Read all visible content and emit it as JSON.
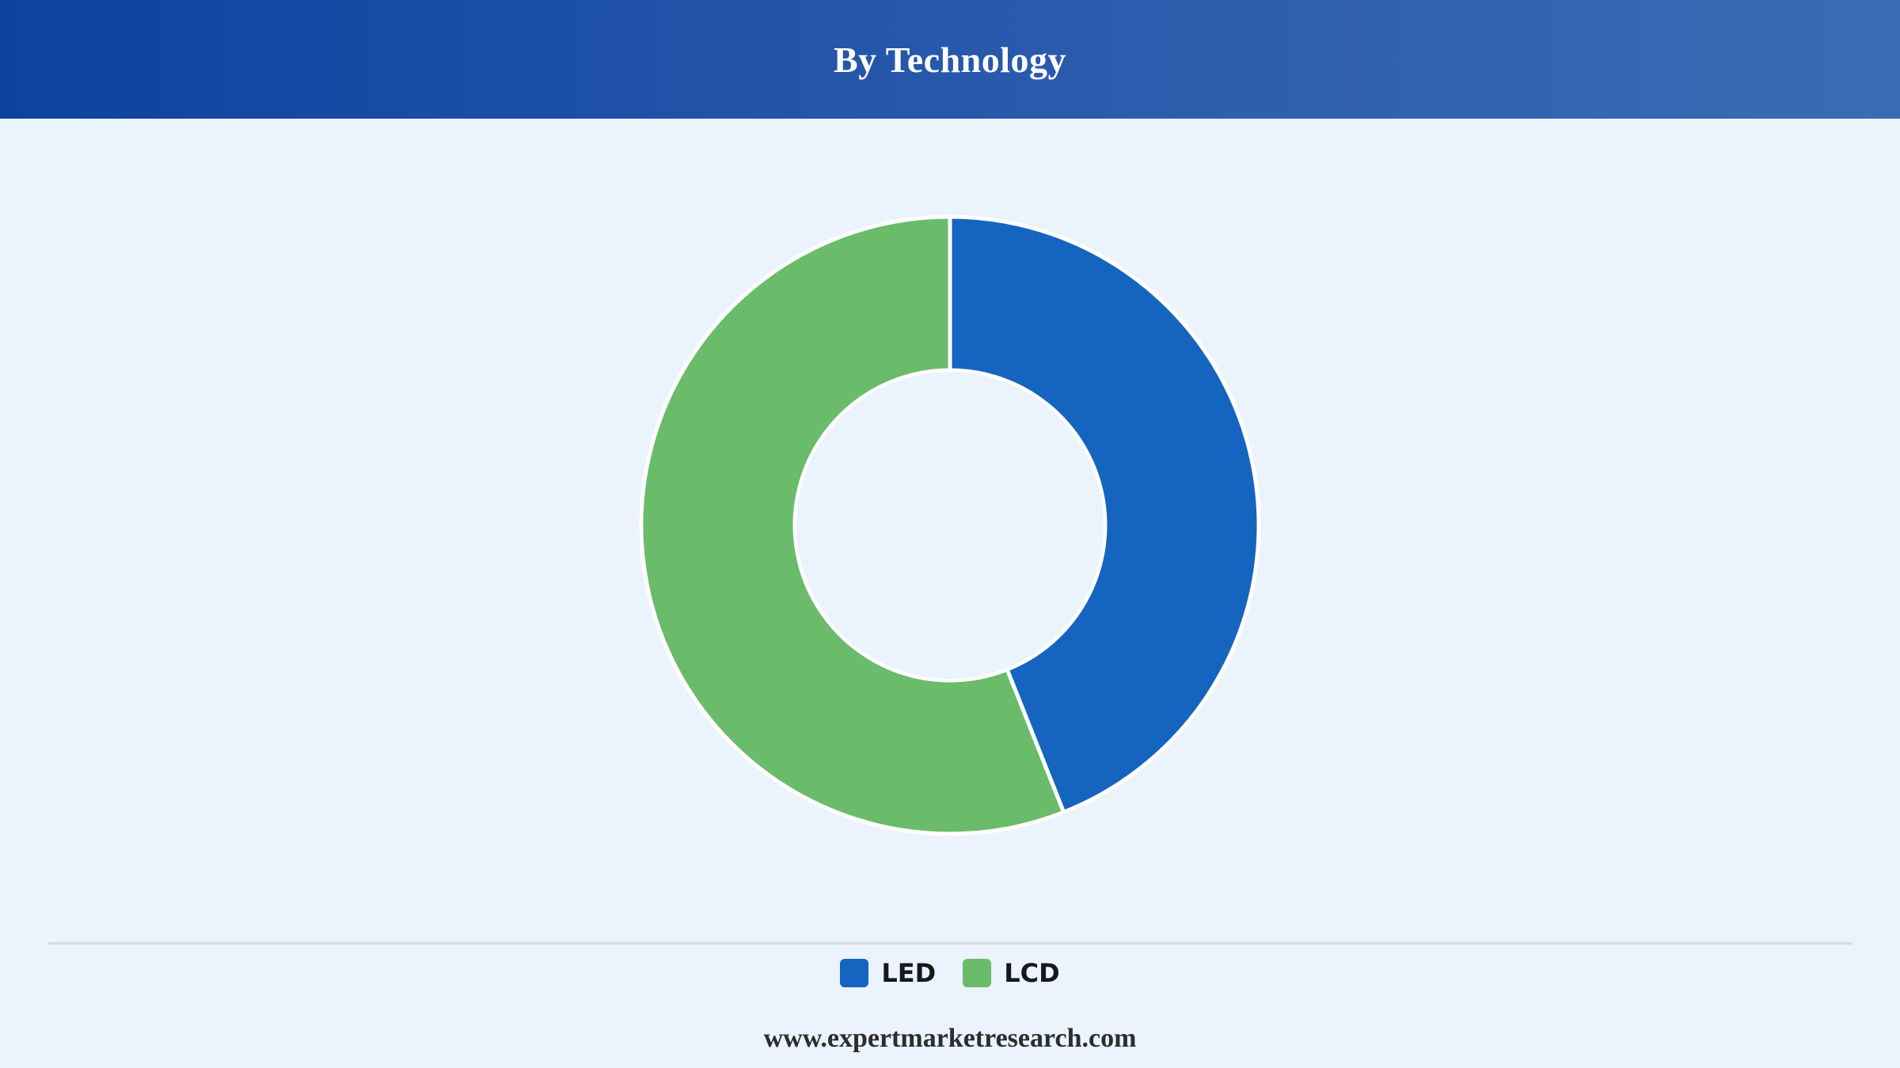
{
  "header": {
    "title": "By Technology"
  },
  "chart_data": {
    "type": "pie",
    "variant": "donut",
    "title": "By Technology",
    "categories": [
      "LED",
      "LCD"
    ],
    "values": [
      44,
      56
    ],
    "unit": "%",
    "colors": [
      "#1565c0",
      "#6abb6a"
    ],
    "legend_position": "bottom"
  },
  "legend": {
    "items": [
      {
        "label": "LED",
        "color": "#1565c0"
      },
      {
        "label": "LCD",
        "color": "#6abb6a"
      }
    ]
  },
  "footer": {
    "url": "www.expertmarketresearch.com"
  }
}
